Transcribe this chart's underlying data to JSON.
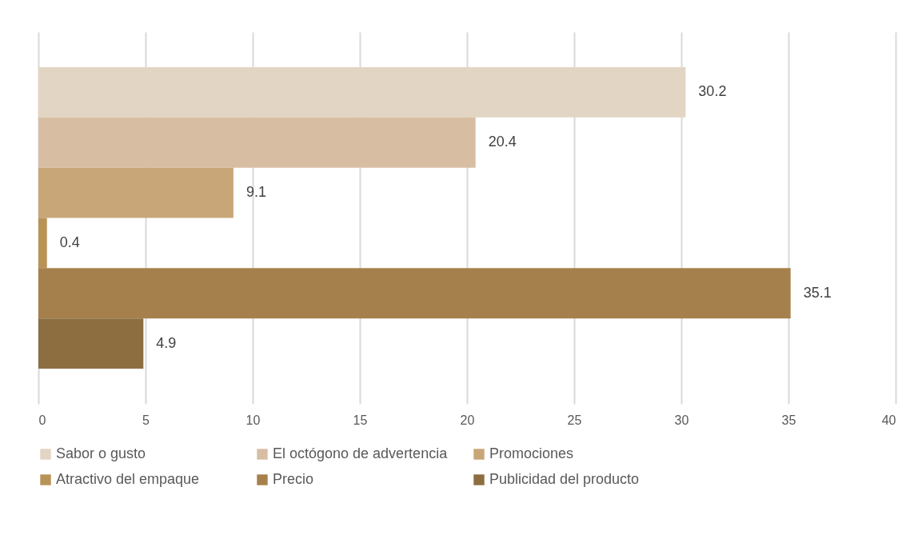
{
  "chart_data": {
    "type": "bar",
    "orientation": "horizontal",
    "categories": [
      null
    ],
    "series": [
      {
        "name": "Sabor o gusto",
        "color": "#e3d5c4",
        "values": [
          30.2
        ]
      },
      {
        "name": "El octógono de advertencia",
        "color": "#d7bea3",
        "values": [
          20.4
        ]
      },
      {
        "name": "Promociones",
        "color": "#c8a678",
        "values": [
          9.1
        ]
      },
      {
        "name": "Atractivo del empaque",
        "color": "#b99355",
        "values": [
          0.4
        ]
      },
      {
        "name": "Precio",
        "color": "#a6804c",
        "values": [
          35.1
        ]
      },
      {
        "name": "Publicidad del producto",
        "color": "#8c6e40",
        "values": [
          4.9
        ]
      }
    ],
    "xlim": [
      0,
      40
    ],
    "xticks": [
      0,
      5,
      10,
      15,
      20,
      25,
      30,
      35,
      40
    ],
    "grid": "x",
    "legend": "bottom",
    "data_labels": true
  }
}
